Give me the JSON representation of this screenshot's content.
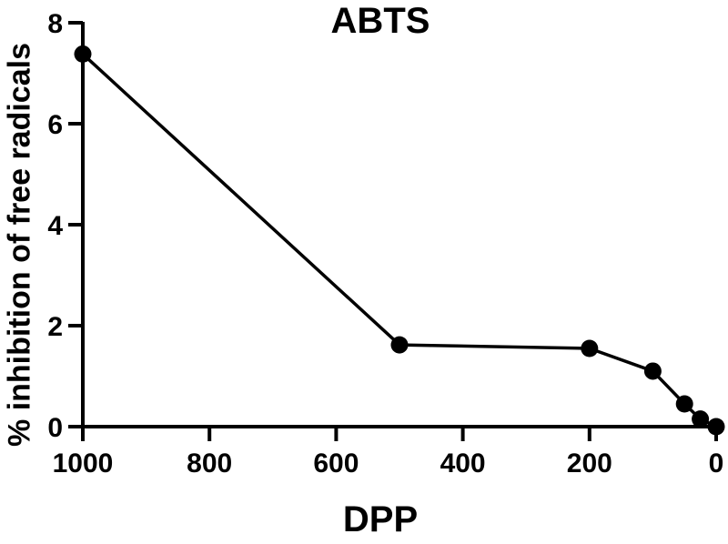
{
  "chart_data": {
    "type": "line",
    "title": "ABTS",
    "xlabel": "DPP",
    "ylabel": "% inhibition of free radicals",
    "x": [
      1000,
      500,
      200,
      100,
      50,
      25,
      0
    ],
    "values": [
      7.38,
      1.62,
      1.55,
      1.1,
      0.45,
      0.15,
      0.0
    ],
    "xlim": [
      1000,
      0
    ],
    "ylim": [
      0,
      8
    ],
    "xticks": [
      1000,
      800,
      600,
      400,
      200,
      0
    ],
    "yticks": [
      0,
      2,
      4,
      6,
      8
    ],
    "x_reversed": true,
    "grid": false,
    "legend": null,
    "marker": "filled-circle",
    "color": "#000000"
  },
  "title": "ABTS",
  "xlabel": "DPP",
  "ylabel": "% inhibition of free radicals"
}
